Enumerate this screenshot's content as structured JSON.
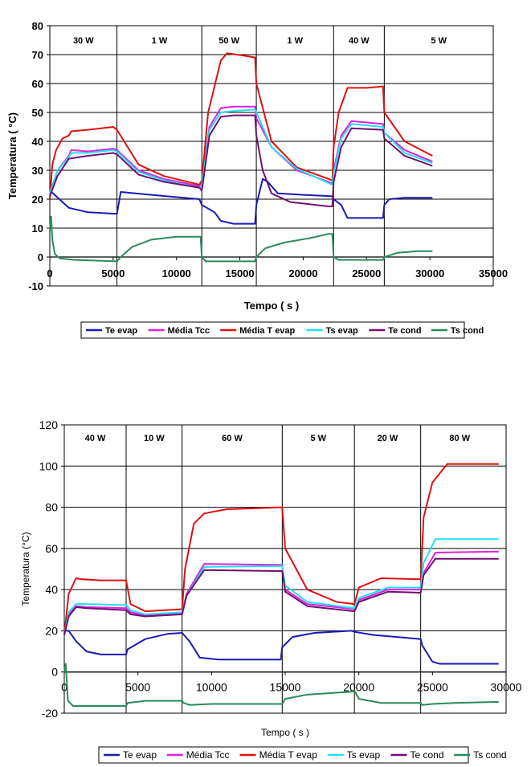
{
  "chart_data": [
    {
      "type": "line",
      "title": "",
      "xlabel": "Tempo ( s )",
      "ylabel": "Temperatura ( °C)",
      "xlim": [
        0,
        35000
      ],
      "ylim": [
        -10,
        80
      ],
      "xticks": [
        0,
        5000,
        10000,
        15000,
        20000,
        25000,
        30000,
        35000
      ],
      "xtick_labels": [
        "0",
        "5000",
        "10000",
        "15000",
        "20000",
        "25000",
        "30000",
        "35000"
      ],
      "yticks": [
        -10,
        0,
        10,
        20,
        30,
        40,
        50,
        60,
        70,
        80
      ],
      "ytick_labels": [
        "-10",
        "0",
        "10",
        "20",
        "30",
        "40",
        "50",
        "60",
        "70",
        "80"
      ],
      "grid": true,
      "legend_position": "bottom",
      "power_phases": [
        {
          "label": "30 W",
          "start": 0,
          "end": 5300
        },
        {
          "label": "1 W",
          "start": 5300,
          "end": 12000
        },
        {
          "label": "50 W",
          "start": 12000,
          "end": 16300
        },
        {
          "label": "1 W",
          "start": 16300,
          "end": 22400
        },
        {
          "label": "40 W",
          "start": 22400,
          "end": 26400
        },
        {
          "label": "5 W",
          "start": 26400,
          "end": 35000
        }
      ],
      "series": [
        {
          "name": "Te evap",
          "color": "#1a1ab8",
          "x": [
            0,
            500,
            1500,
            3000,
            5000,
            5300,
            5600,
            8000,
            11800,
            12000,
            13000,
            13500,
            14500,
            16200,
            16300,
            16800,
            17200,
            18000,
            20000,
            22300,
            22400,
            23000,
            23500,
            26300,
            26400,
            26800,
            28000,
            30200
          ],
          "y": [
            23,
            21,
            17,
            15.5,
            15,
            15,
            22.5,
            21.5,
            20,
            18,
            15.5,
            12.5,
            11.5,
            11.5,
            18,
            27,
            26,
            22,
            21.5,
            21,
            20,
            18,
            13.5,
            13.5,
            18,
            20,
            20.5,
            20.5
          ]
        },
        {
          "name": "Média Tcc",
          "color": "#e020e0",
          "x": [
            0,
            600,
            1500,
            1700,
            3000,
            5000,
            5300,
            7000,
            9000,
            11800,
            12000,
            12600,
            13500,
            14500,
            16200,
            16300,
            17500,
            19500,
            22300,
            22400,
            23000,
            23800,
            26300,
            26400,
            28000,
            30200
          ],
          "y": [
            21,
            30,
            35,
            37,
            36.5,
            37.5,
            37,
            30,
            27,
            24.5,
            26,
            45,
            51.5,
            52,
            52,
            48,
            38,
            30,
            25.5,
            30,
            42,
            47,
            46,
            43,
            37,
            33
          ]
        },
        {
          "name": "Média T evap",
          "color": "#e01010",
          "x": [
            0,
            200,
            500,
            1000,
            1500,
            1700,
            3000,
            5000,
            5300,
            7000,
            9000,
            11800,
            12000,
            12500,
            13500,
            14000,
            15500,
            16200,
            16300,
            17500,
            19500,
            22300,
            22400,
            22800,
            23500,
            25000,
            26300,
            26400,
            28000,
            30200
          ],
          "y": [
            20,
            32,
            37,
            41,
            42,
            43.5,
            44,
            45,
            44,
            32,
            28,
            25,
            26.5,
            50,
            68,
            70.5,
            69.5,
            69,
            60,
            40,
            31,
            26.5,
            38,
            50,
            58.5,
            58.5,
            59,
            50,
            40,
            35
          ]
        },
        {
          "name": "Ts evap",
          "color": "#20e0f0",
          "x": [
            0,
            600,
            1500,
            1700,
            3000,
            5000,
            5300,
            7000,
            9000,
            11800,
            12000,
            12600,
            13500,
            14500,
            16200,
            16300,
            17500,
            19500,
            22300,
            22400,
            23000,
            23800,
            26300,
            26400,
            28000,
            30200
          ],
          "y": [
            22,
            30,
            34.5,
            36,
            36,
            37,
            36.5,
            29.5,
            26.5,
            24,
            25,
            44,
            50,
            50.5,
            51,
            50,
            38,
            30.5,
            25,
            29,
            41,
            46,
            45,
            43,
            36,
            32.5
          ]
        },
        {
          "name": "Te cond",
          "color": "#701070",
          "x": [
            0,
            600,
            1500,
            3000,
            5000,
            5300,
            7000,
            9000,
            11800,
            12000,
            12600,
            13500,
            14500,
            16200,
            16300,
            16800,
            17500,
            19000,
            22000,
            22300,
            22400,
            23000,
            23800,
            26300,
            26400,
            28000,
            30200
          ],
          "y": [
            21,
            28,
            34,
            35,
            36,
            35.5,
            28.5,
            26,
            24,
            23,
            42,
            48.5,
            49,
            49,
            42,
            30,
            22,
            19,
            17.5,
            17.5,
            26,
            38,
            44.5,
            44,
            41,
            35,
            31.5
          ]
        },
        {
          "name": "Ts cond",
          "color": "#2a8a5a",
          "x": [
            0,
            100,
            200,
            400,
            800,
            2000,
            5300,
            5600,
            6500,
            8000,
            10000,
            11900,
            12000,
            12300,
            14000,
            16200,
            16300,
            17000,
            18500,
            20500,
            22000,
            22300,
            22400,
            22800,
            26300,
            26400,
            27500,
            29000,
            30200
          ],
          "y": [
            9,
            14,
            6,
            1,
            -0.5,
            -1,
            -1.5,
            0,
            3.5,
            6,
            7,
            7,
            0,
            -1.5,
            -1.5,
            -1.5,
            0,
            3,
            5,
            6.5,
            8,
            8,
            0,
            -1,
            -1,
            0,
            1.5,
            2,
            2
          ]
        }
      ]
    },
    {
      "type": "line",
      "title": "",
      "xlabel": "Tempo ( s )",
      "ylabel": "Temperatura (°C)",
      "xlim": [
        0,
        30000
      ],
      "ylim": [
        -20,
        120
      ],
      "xticks": [
        0,
        5000,
        10000,
        15000,
        20000,
        25000,
        30000
      ],
      "xtick_labels": [
        "0",
        "5000",
        "10000",
        "15000",
        "20000",
        "25000",
        "30000"
      ],
      "yticks": [
        -20,
        0,
        20,
        40,
        60,
        80,
        100,
        120
      ],
      "ytick_labels": [
        "-20",
        "0",
        "20",
        "40",
        "60",
        "80",
        "100",
        "120"
      ],
      "grid": true,
      "legend_position": "bottom",
      "power_phases": [
        {
          "label": "40 W",
          "start": 0,
          "end": 4200
        },
        {
          "label": "10 W",
          "start": 4200,
          "end": 8000
        },
        {
          "label": "60 W",
          "start": 8000,
          "end": 14800
        },
        {
          "label": "5 W",
          "start": 14800,
          "end": 19700
        },
        {
          "label": "20 W",
          "start": 19700,
          "end": 24200
        },
        {
          "label": "80 W",
          "start": 24200,
          "end": 30000
        }
      ],
      "series": [
        {
          "name": "Te evap",
          "color": "#1a1ab8",
          "x": [
            0,
            300,
            800,
            1500,
            2500,
            4200,
            4300,
            5500,
            7000,
            8000,
            8500,
            9200,
            10500,
            14700,
            14800,
            15500,
            17000,
            19500,
            19700,
            21000,
            24200,
            24300,
            25000,
            25500,
            27000,
            29500
          ],
          "y": [
            20,
            20,
            15,
            10,
            8.5,
            8.5,
            11,
            16,
            18.5,
            19,
            15,
            7,
            6,
            6,
            12,
            17,
            19,
            20,
            19.5,
            18,
            16,
            13,
            5,
            4,
            4,
            4
          ]
        },
        {
          "name": "Média Tcc",
          "color": "#e020e0",
          "x": [
            0,
            300,
            800,
            1500,
            4200,
            4500,
            5500,
            8000,
            8300,
            9500,
            14800,
            15000,
            16500,
            19700,
            20000,
            22000,
            24200,
            24400,
            25200,
            29500
          ],
          "y": [
            18,
            28,
            32,
            31.5,
            31,
            29,
            27.5,
            28.5,
            38,
            52.5,
            52,
            40,
            33,
            30.5,
            35,
            40,
            40,
            48,
            58,
            58.5
          ]
        },
        {
          "name": "Média T evap",
          "color": "#e01010",
          "x": [
            0,
            300,
            800,
            1200,
            2500,
            4200,
            4500,
            5500,
            8000,
            8200,
            8800,
            9500,
            11000,
            14800,
            15000,
            16500,
            18500,
            19700,
            20000,
            21500,
            24200,
            24400,
            25000,
            26000,
            29500
          ],
          "y": [
            18,
            38,
            45.5,
            45,
            44.5,
            44.5,
            33,
            29.5,
            30.5,
            50,
            72,
            77,
            79,
            80,
            60,
            40,
            34,
            33,
            41,
            45.5,
            45,
            75,
            92,
            101,
            101
          ]
        },
        {
          "name": "Ts evap",
          "color": "#20e0f0",
          "x": [
            0,
            300,
            800,
            1500,
            4200,
            4500,
            5500,
            8000,
            8300,
            9500,
            14800,
            15000,
            16500,
            19700,
            20000,
            22000,
            24200,
            24400,
            25200,
            29500
          ],
          "y": [
            18,
            29,
            33,
            33,
            32.5,
            30,
            28,
            29,
            37,
            51,
            51.5,
            42,
            34,
            31,
            36,
            41,
            41,
            53,
            64.5,
            64.5
          ]
        },
        {
          "name": "Te cond",
          "color": "#701070",
          "x": [
            0,
            300,
            800,
            1500,
            4200,
            4500,
            5500,
            8000,
            8300,
            9500,
            14800,
            15000,
            16500,
            19700,
            20000,
            22000,
            24200,
            24400,
            25200,
            29500
          ],
          "y": [
            18,
            27,
            31.5,
            31,
            30,
            28,
            27,
            28,
            37,
            49.5,
            49,
            39,
            32,
            29.5,
            34,
            39,
            38.5,
            47,
            55,
            55
          ]
        },
        {
          "name": "Ts cond",
          "color": "#2a8a5a",
          "x": [
            0,
            100,
            250,
            600,
            1500,
            4200,
            4300,
            5500,
            8000,
            8100,
            8500,
            10000,
            14800,
            15000,
            16500,
            19600,
            19700,
            20000,
            21500,
            24200,
            24300,
            25000,
            26500,
            29500
          ],
          "y": [
            0,
            4,
            -14,
            -16.5,
            -16.5,
            -16.5,
            -15,
            -14,
            -14,
            -15,
            -16,
            -15.5,
            -15.5,
            -13,
            -11,
            -9.5,
            -9,
            -13,
            -15,
            -15,
            -16,
            -15.5,
            -15,
            -14.5
          ]
        }
      ]
    }
  ]
}
